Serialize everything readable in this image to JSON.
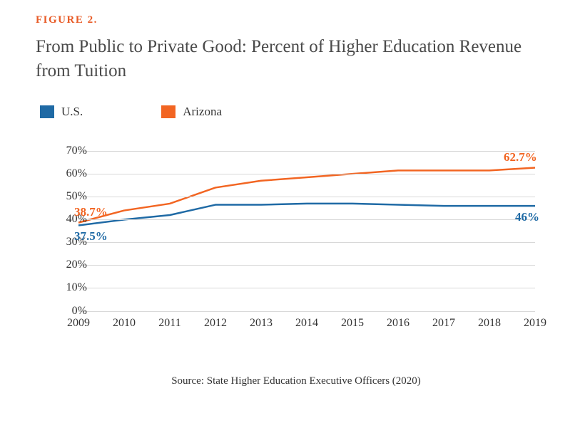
{
  "figure_label": "FIGURE 2.",
  "title": "From Public to Private Good: Percent of Higher Education Revenue from Tuition",
  "legend": {
    "us": {
      "label": "U.S.",
      "color": "#1f6aa5"
    },
    "arizona": {
      "label": "Arizona",
      "color": "#f26522"
    }
  },
  "chart": {
    "type": "line",
    "x_categories": [
      "2009",
      "2010",
      "2011",
      "2012",
      "2013",
      "2014",
      "2015",
      "2016",
      "2017",
      "2018",
      "2019"
    ],
    "ylim": [
      0,
      70
    ],
    "ytick_step": 10,
    "y_ticks": [
      "0%",
      "10%",
      "20%",
      "30%",
      "40%",
      "50%",
      "60%",
      "70%"
    ],
    "grid_color": "#d8d8d8",
    "background_color": "#ffffff",
    "line_width": 2.5,
    "series": {
      "us": {
        "color": "#1f6aa5",
        "values": [
          37.5,
          40,
          42,
          46.5,
          46.5,
          47,
          47,
          46.5,
          46,
          46,
          46
        ]
      },
      "arizona": {
        "color": "#f26522",
        "values": [
          38.7,
          44,
          47,
          54,
          57,
          58.5,
          60,
          61.5,
          61.5,
          61.5,
          62.7
        ]
      }
    },
    "data_labels": {
      "us_start": {
        "text": "37.5%",
        "color": "#1f6aa5"
      },
      "us_end": {
        "text": "46%",
        "color": "#1f6aa5"
      },
      "arizona_start": {
        "text": "38.7%",
        "color": "#f26522"
      },
      "arizona_end": {
        "text": "62.7%",
        "color": "#f26522"
      }
    }
  },
  "source": "Source: State Higher Education Executive Officers (2020)"
}
